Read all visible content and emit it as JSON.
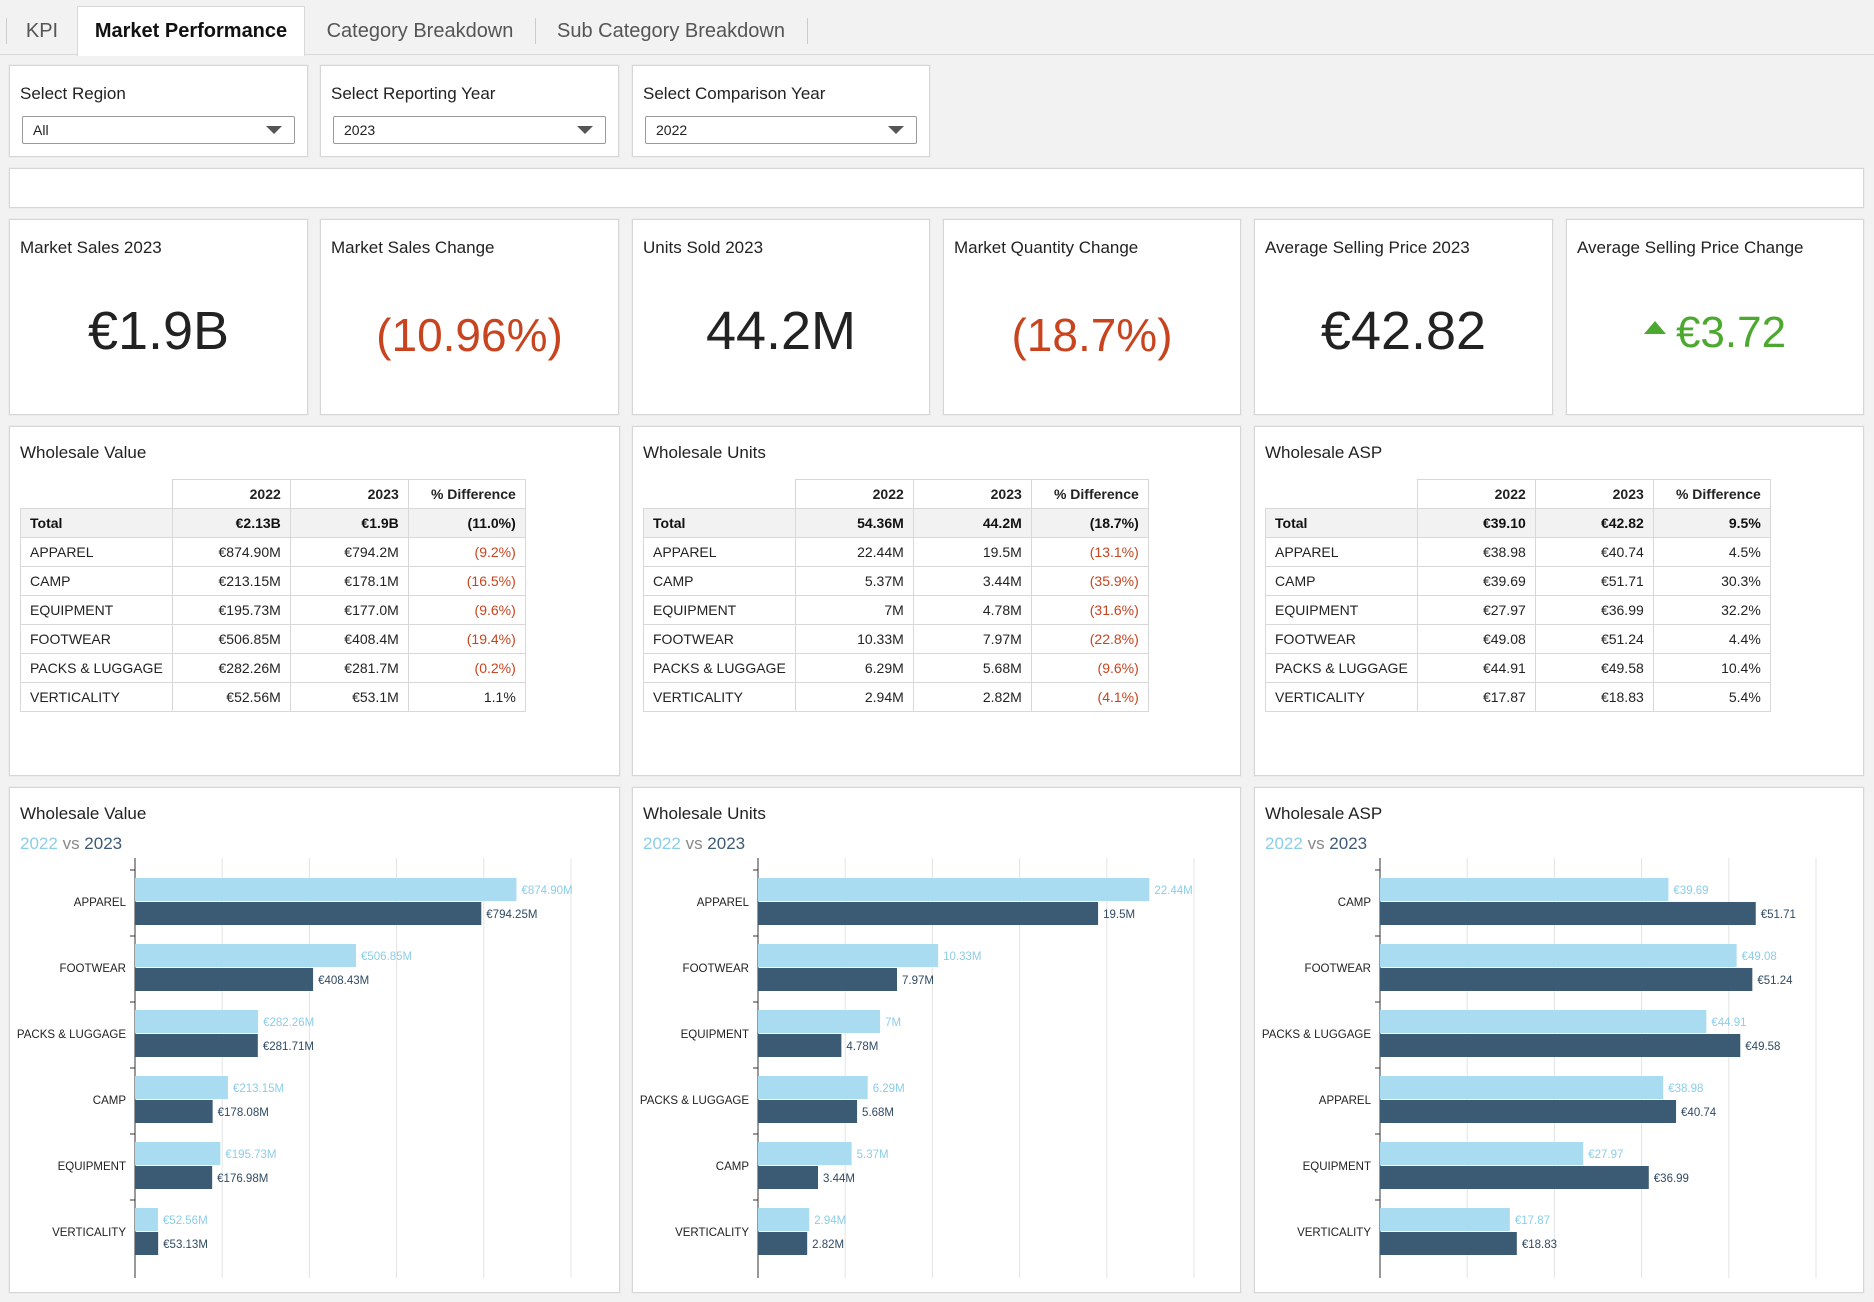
{
  "tabs": [
    {
      "label": "KPI"
    },
    {
      "label": "Market Performance"
    },
    {
      "label": "Category Breakdown"
    },
    {
      "label": "Sub Category Breakdown"
    }
  ],
  "filters": {
    "region": {
      "label": "Select Region",
      "value": "All"
    },
    "reporting_year": {
      "label": "Select Reporting Year",
      "value": "2023"
    },
    "comparison_year": {
      "label": "Select Comparison Year",
      "value": "2022"
    }
  },
  "kpis": [
    {
      "title": "Market Sales 2023",
      "value": "€1.9B"
    },
    {
      "title": "Market Sales Change",
      "value": "(10.96%)"
    },
    {
      "title": "Units Sold 2023",
      "value": "44.2M"
    },
    {
      "title": "Market Quantity Change",
      "value": "(18.7%)"
    },
    {
      "title": "Average Selling Price 2023",
      "value": "€42.82"
    },
    {
      "title": "Average Selling Price Change",
      "value": "€3.72"
    }
  ],
  "colors": {
    "y2022": "#a9dcf0",
    "y2023": "#3b5a74",
    "negative": "#c8441f",
    "positive": "#4ca82e"
  },
  "tables": [
    {
      "title": "Wholesale Value",
      "headers": [
        "2022",
        "2023",
        "% Difference"
      ],
      "total": {
        "label": "Total",
        "v2022": "€2.13B",
        "v2023": "€1.9B",
        "diff": "(11.0%)"
      },
      "rows": [
        {
          "label": "APPAREL",
          "v2022": "€874.90M",
          "v2023": "€794.2M",
          "diff": "(9.2%)"
        },
        {
          "label": "CAMP",
          "v2022": "€213.15M",
          "v2023": "€178.1M",
          "diff": "(16.5%)"
        },
        {
          "label": "EQUIPMENT",
          "v2022": "€195.73M",
          "v2023": "€177.0M",
          "diff": "(9.6%)"
        },
        {
          "label": "FOOTWEAR",
          "v2022": "€506.85M",
          "v2023": "€408.4M",
          "diff": "(19.4%)"
        },
        {
          "label": "PACKS & LUGGAGE",
          "v2022": "€282.26M",
          "v2023": "€281.7M",
          "diff": "(0.2%)"
        },
        {
          "label": "VERTICALITY",
          "v2022": "€52.56M",
          "v2023": "€53.1M",
          "diff": "1.1%"
        }
      ]
    },
    {
      "title": "Wholesale Units",
      "headers": [
        "2022",
        "2023",
        "% Difference"
      ],
      "total": {
        "label": "Total",
        "v2022": "54.36M",
        "v2023": "44.2M",
        "diff": "(18.7%)"
      },
      "rows": [
        {
          "label": "APPAREL",
          "v2022": "22.44M",
          "v2023": "19.5M",
          "diff": "(13.1%)"
        },
        {
          "label": "CAMP",
          "v2022": "5.37M",
          "v2023": "3.44M",
          "diff": "(35.9%)"
        },
        {
          "label": "EQUIPMENT",
          "v2022": "7M",
          "v2023": "4.78M",
          "diff": "(31.6%)"
        },
        {
          "label": "FOOTWEAR",
          "v2022": "10.33M",
          "v2023": "7.97M",
          "diff": "(22.8%)"
        },
        {
          "label": "PACKS & LUGGAGE",
          "v2022": "6.29M",
          "v2023": "5.68M",
          "diff": "(9.6%)"
        },
        {
          "label": "VERTICALITY",
          "v2022": "2.94M",
          "v2023": "2.82M",
          "diff": "(4.1%)"
        }
      ]
    },
    {
      "title": "Wholesale ASP",
      "headers": [
        "2022",
        "2023",
        "% Difference"
      ],
      "total": {
        "label": "Total",
        "v2022": "€39.10",
        "v2023": "€42.82",
        "diff": "9.5%"
      },
      "rows": [
        {
          "label": "APPAREL",
          "v2022": "€38.98",
          "v2023": "€40.74",
          "diff": "4.5%"
        },
        {
          "label": "CAMP",
          "v2022": "€39.69",
          "v2023": "€51.71",
          "diff": "30.3%"
        },
        {
          "label": "EQUIPMENT",
          "v2022": "€27.97",
          "v2023": "€36.99",
          "diff": "32.2%"
        },
        {
          "label": "FOOTWEAR",
          "v2022": "€49.08",
          "v2023": "€51.24",
          "diff": "4.4%"
        },
        {
          "label": "PACKS & LUGGAGE",
          "v2022": "€44.91",
          "v2023": "€49.58",
          "diff": "10.4%"
        },
        {
          "label": "VERTICALITY",
          "v2022": "€17.87",
          "v2023": "€18.83",
          "diff": "5.4%"
        }
      ]
    }
  ],
  "chart_data": [
    {
      "type": "bar",
      "orientation": "horizontal",
      "title": "Wholesale Value",
      "subtitle_2022": "2022",
      "subtitle_vs": "vs",
      "subtitle_2023": "2023",
      "categories": [
        "APPAREL",
        "FOOTWEAR",
        "PACKS & LUGGAGE",
        "CAMP",
        "EQUIPMENT",
        "VERTICALITY"
      ],
      "xlim": [
        0,
        1000
      ],
      "series": [
        {
          "name": "2022",
          "values": [
            874.9,
            506.85,
            282.26,
            213.15,
            195.73,
            52.56
          ],
          "labels": [
            "€874.90M",
            "€506.85M",
            "€282.26M",
            "€213.15M",
            "€195.73M",
            "€52.56M"
          ]
        },
        {
          "name": "2023",
          "values": [
            794.25,
            408.43,
            281.71,
            178.08,
            176.98,
            53.13
          ],
          "labels": [
            "€794.25M",
            "€408.43M",
            "€281.71M",
            "€178.08M",
            "€176.98M",
            "€53.13M"
          ]
        }
      ]
    },
    {
      "type": "bar",
      "orientation": "horizontal",
      "title": "Wholesale Units",
      "subtitle_2022": "2022",
      "subtitle_vs": "vs",
      "subtitle_2023": "2023",
      "categories": [
        "APPAREL",
        "FOOTWEAR",
        "EQUIPMENT",
        "PACKS & LUGGAGE",
        "CAMP",
        "VERTICALITY"
      ],
      "xlim": [
        0,
        25
      ],
      "series": [
        {
          "name": "2022",
          "values": [
            22.44,
            10.33,
            7,
            6.29,
            5.37,
            2.94
          ],
          "labels": [
            "22.44M",
            "10.33M",
            "7M",
            "6.29M",
            "5.37M",
            "2.94M"
          ]
        },
        {
          "name": "2023",
          "values": [
            19.5,
            7.97,
            4.78,
            5.68,
            3.44,
            2.82
          ],
          "labels": [
            "19.5M",
            "7.97M",
            "4.78M",
            "5.68M",
            "3.44M",
            "2.82M"
          ]
        }
      ]
    },
    {
      "type": "bar",
      "orientation": "horizontal",
      "title": "Wholesale ASP",
      "subtitle_2022": "2022",
      "subtitle_vs": "vs",
      "subtitle_2023": "2023",
      "categories": [
        "CAMP",
        "FOOTWEAR",
        "PACKS & LUGGAGE",
        "APPAREL",
        "EQUIPMENT",
        "VERTICALITY"
      ],
      "xlim": [
        0,
        60
      ],
      "series": [
        {
          "name": "2022",
          "values": [
            39.69,
            49.08,
            44.91,
            38.98,
            27.97,
            17.87
          ],
          "labels": [
            "€39.69",
            "€49.08",
            "€44.91",
            "€38.98",
            "€27.97",
            "€17.87"
          ]
        },
        {
          "name": "2023",
          "values": [
            51.71,
            51.24,
            49.58,
            40.74,
            36.99,
            18.83
          ],
          "labels": [
            "€51.71",
            "€51.24",
            "€49.58",
            "€40.74",
            "€36.99",
            "€18.83"
          ]
        }
      ]
    }
  ]
}
